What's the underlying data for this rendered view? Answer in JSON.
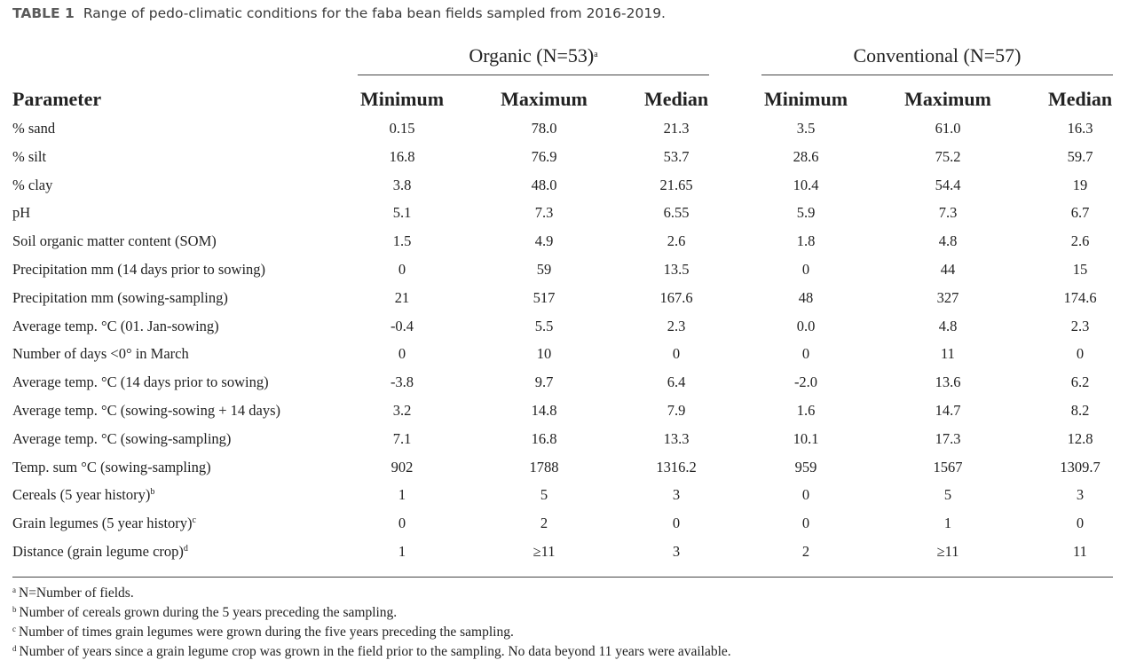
{
  "caption": {
    "label": "TABLE 1",
    "text": "Range of pedo-climatic conditions for the faba bean fields sampled from 2016-2019."
  },
  "groups": {
    "organic": {
      "label": "Organic (N=53)",
      "sup": "a"
    },
    "conventional": {
      "label": "Conventional (N=57)",
      "sup": ""
    }
  },
  "headers": {
    "parameter": "Parameter",
    "minimum": "Minimum",
    "maximum": "Maximum",
    "median": "Median"
  },
  "rows": [
    {
      "param": "% sand",
      "sup": "",
      "org": [
        "0.15",
        "78.0",
        "21.3"
      ],
      "conv": [
        "3.5",
        "61.0",
        "16.3"
      ]
    },
    {
      "param": "% silt",
      "sup": "",
      "org": [
        "16.8",
        "76.9",
        "53.7"
      ],
      "conv": [
        "28.6",
        "75.2",
        "59.7"
      ]
    },
    {
      "param": "% clay",
      "sup": "",
      "org": [
        "3.8",
        "48.0",
        "21.65"
      ],
      "conv": [
        "10.4",
        "54.4",
        "19"
      ]
    },
    {
      "param": "pH",
      "sup": "",
      "org": [
        "5.1",
        "7.3",
        "6.55"
      ],
      "conv": [
        "5.9",
        "7.3",
        "6.7"
      ]
    },
    {
      "param": "Soil organic matter content (SOM)",
      "sup": "",
      "org": [
        "1.5",
        "4.9",
        "2.6"
      ],
      "conv": [
        "1.8",
        "4.8",
        "2.6"
      ]
    },
    {
      "param": "Precipitation mm (14 days prior to sowing)",
      "sup": "",
      "org": [
        "0",
        "59",
        "13.5"
      ],
      "conv": [
        "0",
        "44",
        "15"
      ]
    },
    {
      "param": "Precipitation mm (sowing-sampling)",
      "sup": "",
      "org": [
        "21",
        "517",
        "167.6"
      ],
      "conv": [
        "48",
        "327",
        "174.6"
      ]
    },
    {
      "param": "Average temp. °C (01. Jan-sowing)",
      "sup": "",
      "org": [
        "-0.4",
        "5.5",
        "2.3"
      ],
      "conv": [
        "0.0",
        "4.8",
        "2.3"
      ]
    },
    {
      "param": "Number of days <0° in March",
      "sup": "",
      "org": [
        "0",
        "10",
        "0"
      ],
      "conv": [
        "0",
        "11",
        "0"
      ]
    },
    {
      "param": "Average temp. °C (14 days prior to sowing)",
      "sup": "",
      "org": [
        "-3.8",
        "9.7",
        "6.4"
      ],
      "conv": [
        "-2.0",
        "13.6",
        "6.2"
      ]
    },
    {
      "param": "Average temp. °C (sowing-sowing + 14 days)",
      "sup": "",
      "org": [
        "3.2",
        "14.8",
        "7.9"
      ],
      "conv": [
        "1.6",
        "14.7",
        "8.2"
      ]
    },
    {
      "param": "Average temp. °C (sowing-sampling)",
      "sup": "",
      "org": [
        "7.1",
        "16.8",
        "13.3"
      ],
      "conv": [
        "10.1",
        "17.3",
        "12.8"
      ]
    },
    {
      "param": "Temp. sum °C (sowing-sampling)",
      "sup": "",
      "org": [
        "902",
        "1788",
        "1316.2"
      ],
      "conv": [
        "959",
        "1567",
        "1309.7"
      ]
    },
    {
      "param": "Cereals (5 year history)",
      "sup": "b",
      "org": [
        "1",
        "5",
        "3"
      ],
      "conv": [
        "0",
        "5",
        "3"
      ]
    },
    {
      "param": "Grain legumes (5 year history)",
      "sup": "c",
      "org": [
        "0",
        "2",
        "0"
      ],
      "conv": [
        "0",
        "1",
        "0"
      ]
    },
    {
      "param": "Distance (grain legume crop)",
      "sup": "d",
      "org": [
        "1",
        "≥11",
        "3"
      ],
      "conv": [
        "2",
        "≥11",
        "11"
      ]
    }
  ],
  "footnotes": [
    {
      "mark": "a",
      "text": "N=Number of fields."
    },
    {
      "mark": "b",
      "text": "Number of cereals grown during the 5 years preceding the sampling."
    },
    {
      "mark": "c",
      "text": "Number of times grain legumes were grown during the five years preceding the sampling."
    },
    {
      "mark": "d",
      "text": "Number of years since a grain legume crop was grown in the field prior to the sampling. No data beyond 11 years were available."
    }
  ]
}
